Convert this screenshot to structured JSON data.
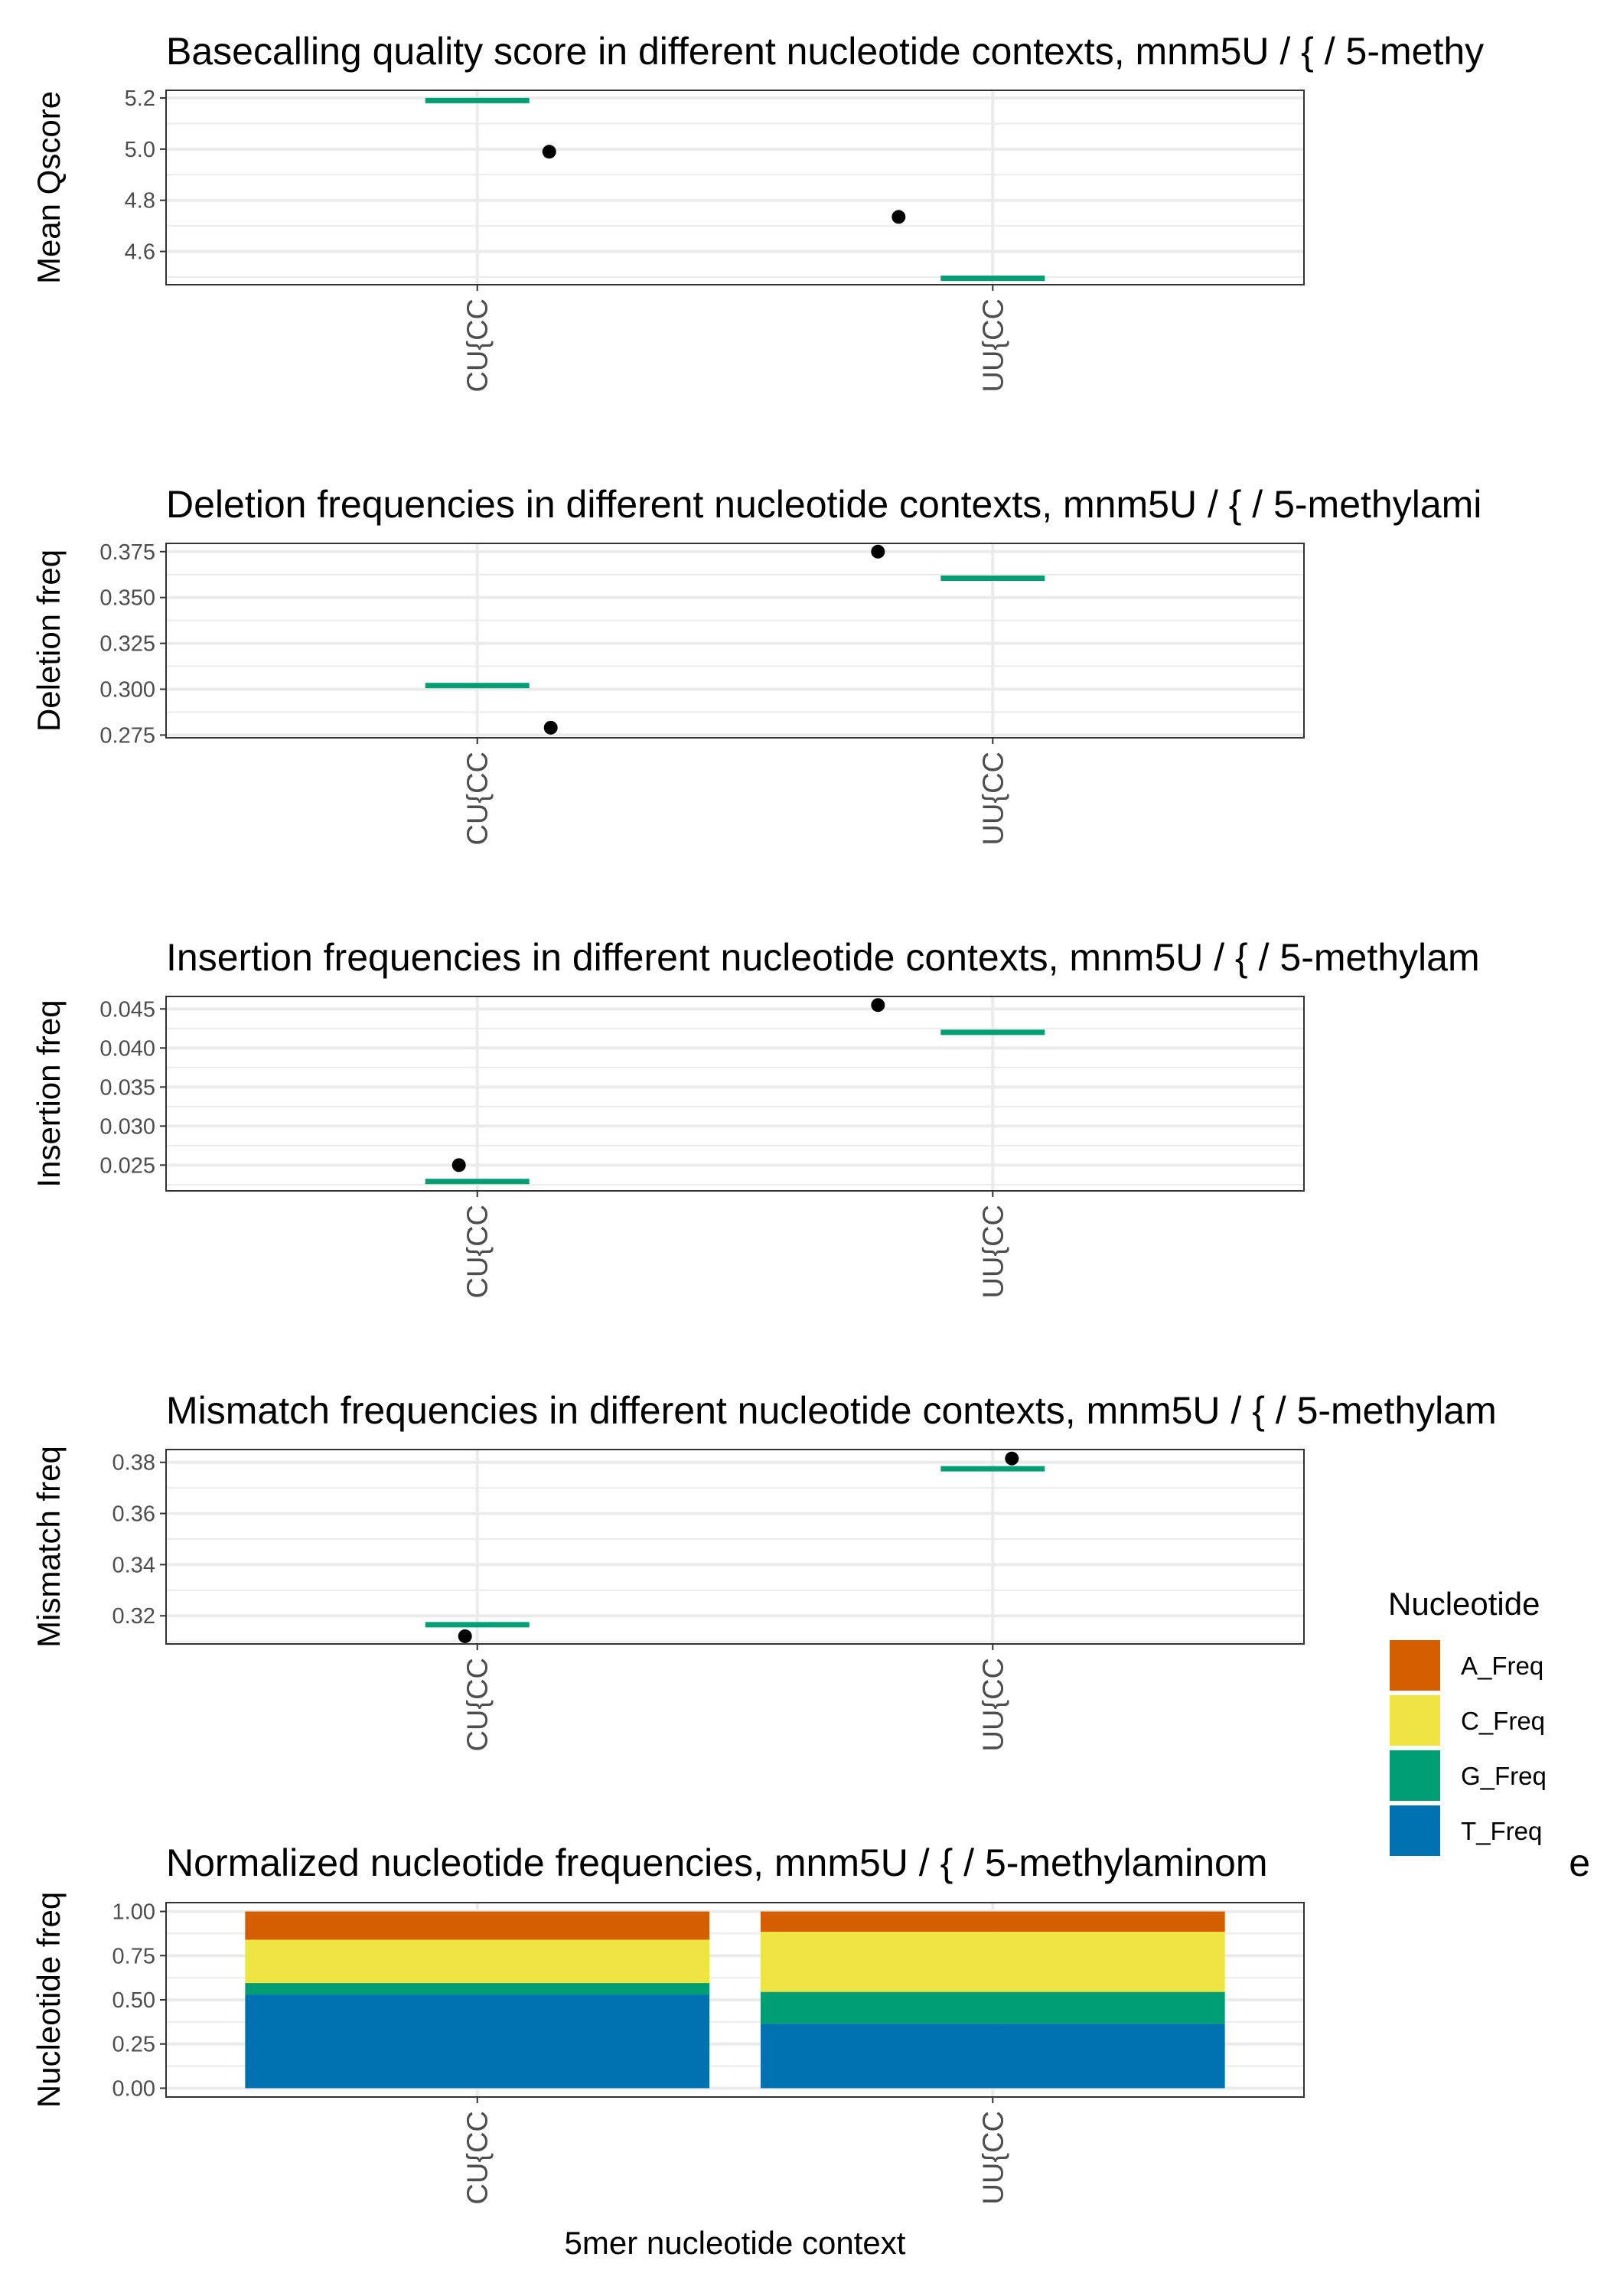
{
  "chart_data": [
    {
      "type": "scatter",
      "title": "Basecalling quality score in different nucleotide contexts, mnm5U / { / 5-methy",
      "ylabel": "Mean Qscore",
      "xlabel": "",
      "categories": [
        "CU{CC",
        "UU{CC"
      ],
      "ylim": [
        4.47,
        5.23
      ],
      "yticks": [
        4.6,
        4.8,
        5.0,
        5.2
      ],
      "ytick_labels": [
        "4.6",
        "4.8",
        "5.0",
        "5.2"
      ],
      "points": [
        {
          "category": "CU{CC",
          "value": 4.99
        },
        {
          "category": "UU{CC",
          "value": 4.735
        }
      ],
      "reference": [
        {
          "category": "CU{CC",
          "value": 5.19
        },
        {
          "category": "UU{CC",
          "value": 4.495
        }
      ],
      "grid": true
    },
    {
      "type": "scatter",
      "title": "Deletion frequencies in different nucleotide contexts, mnm5U / { / 5-methylami",
      "ylabel": "Deletion freq",
      "xlabel": "",
      "categories": [
        "CU{CC",
        "UU{CC"
      ],
      "ylim": [
        0.2735,
        0.3795
      ],
      "yticks": [
        0.275,
        0.3,
        0.325,
        0.35,
        0.375
      ],
      "ytick_labels": [
        "0.275",
        "0.300",
        "0.325",
        "0.350",
        "0.375"
      ],
      "points": [
        {
          "category": "CU{CC",
          "value": 0.279
        },
        {
          "category": "UU{CC",
          "value": 0.375
        }
      ],
      "reference": [
        {
          "category": "CU{CC",
          "value": 0.302
        },
        {
          "category": "UU{CC",
          "value": 0.3605
        }
      ],
      "grid": true
    },
    {
      "type": "scatter",
      "title": "Insertion frequencies in different nucleotide contexts, mnm5U / { / 5-methylam",
      "ylabel": "Insertion freq",
      "xlabel": "",
      "categories": [
        "CU{CC",
        "UU{CC"
      ],
      "ylim": [
        0.0217,
        0.0466
      ],
      "yticks": [
        0.025,
        0.03,
        0.035,
        0.04,
        0.045
      ],
      "ytick_labels": [
        "0.025",
        "0.030",
        "0.035",
        "0.040",
        "0.045"
      ],
      "points": [
        {
          "category": "CU{CC",
          "value": 0.025
        },
        {
          "category": "UU{CC",
          "value": 0.0455
        }
      ],
      "reference": [
        {
          "category": "CU{CC",
          "value": 0.0229
        },
        {
          "category": "UU{CC",
          "value": 0.042
        }
      ],
      "grid": true
    },
    {
      "type": "scatter",
      "title": "Mismatch frequencies in different nucleotide contexts, mnm5U / { / 5-methylam",
      "ylabel": "Mismatch freq",
      "xlabel": "",
      "categories": [
        "CU{CC",
        "UU{CC"
      ],
      "ylim": [
        0.309,
        0.385
      ],
      "yticks": [
        0.32,
        0.34,
        0.36,
        0.38
      ],
      "ytick_labels": [
        "0.32",
        "0.34",
        "0.36",
        "0.38"
      ],
      "points": [
        {
          "category": "CU{CC",
          "value": 0.312
        },
        {
          "category": "UU{CC",
          "value": 0.3815
        }
      ],
      "reference": [
        {
          "category": "CU{CC",
          "value": 0.3165
        },
        {
          "category": "UU{CC",
          "value": 0.3775
        }
      ],
      "grid": true
    },
    {
      "type": "bar",
      "stacked": true,
      "title": "Normalized nucleotide frequencies, mnm5U / { / 5-methylaminom",
      "title_tail": "e",
      "ylabel": "Nucleotide freq",
      "xlabel": "5mer nucleotide context",
      "categories": [
        "CU{CC",
        "UU{CC"
      ],
      "ylim": [
        -0.05,
        1.05
      ],
      "yticks": [
        0.0,
        0.25,
        0.5,
        0.75,
        1.0
      ],
      "ytick_labels": [
        "0.00",
        "0.25",
        "0.50",
        "0.75",
        "1.00"
      ],
      "series": [
        {
          "name": "T_Freq",
          "color": "#0072B2",
          "values": [
            0.53,
            0.365
          ]
        },
        {
          "name": "G_Freq",
          "color": "#009E73",
          "values": [
            0.065,
            0.18
          ]
        },
        {
          "name": "C_Freq",
          "color": "#F0E442",
          "values": [
            0.245,
            0.34
          ]
        },
        {
          "name": "A_Freq",
          "color": "#D55E00",
          "values": [
            0.16,
            0.115
          ]
        }
      ],
      "grid": true
    }
  ],
  "legend": {
    "title": "Nucleotide",
    "placement": "right",
    "items": [
      {
        "label": "A_Freq",
        "color": "#D55E00"
      },
      {
        "label": "C_Freq",
        "color": "#F0E442"
      },
      {
        "label": "G_Freq",
        "color": "#009E73"
      },
      {
        "label": "T_Freq",
        "color": "#0072B2"
      }
    ]
  },
  "colors": {
    "point": "#000000",
    "reference_line": "#009E73",
    "grid": "#ebebeb",
    "panel_border": "#333333"
  }
}
